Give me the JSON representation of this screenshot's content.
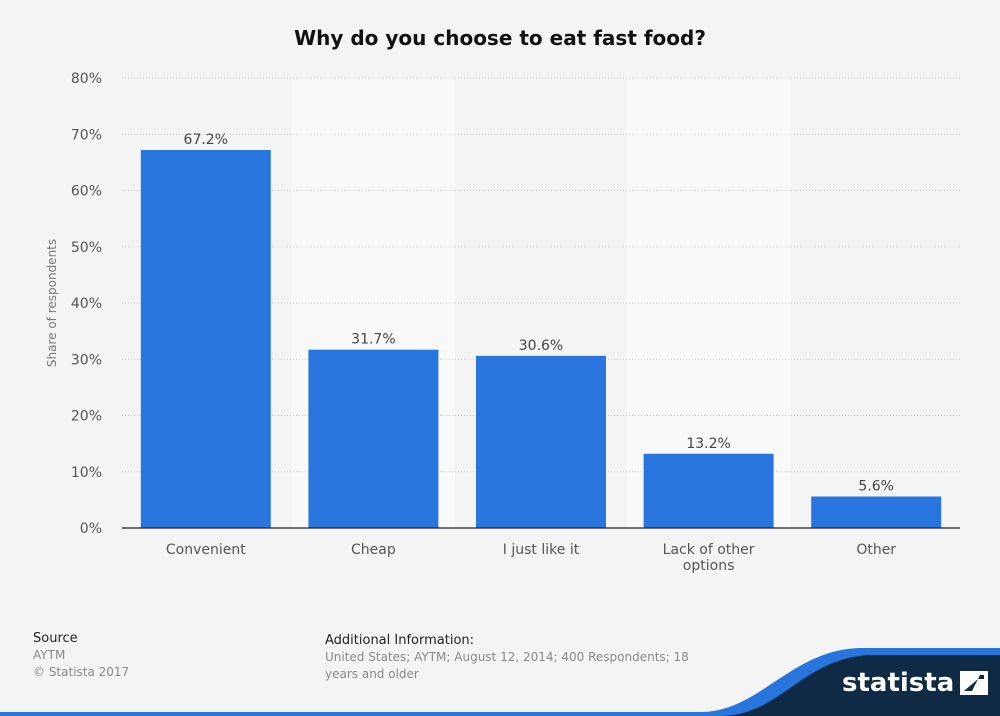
{
  "chart_data": {
    "type": "bar",
    "title": "Why do you choose to eat fast food?",
    "ylabel": "Share of respondents",
    "xlabel": "",
    "categories": [
      "Convenient",
      "Cheap",
      "I just like it",
      "Lack of other options",
      "Other"
    ],
    "category_lines": [
      [
        "Convenient"
      ],
      [
        "Cheap"
      ],
      [
        "I just like it"
      ],
      [
        "Lack of other",
        "options"
      ],
      [
        "Other"
      ]
    ],
    "values": [
      67.2,
      31.7,
      30.6,
      13.2,
      5.6
    ],
    "value_labels": [
      "67.2%",
      "31.7%",
      "30.6%",
      "13.2%",
      "5.6%"
    ],
    "ylim": [
      0,
      80
    ],
    "yticks": [
      0,
      10,
      20,
      30,
      40,
      50,
      60,
      70,
      80
    ],
    "ytick_labels": [
      "0%",
      "10%",
      "20%",
      "30%",
      "40%",
      "50%",
      "60%",
      "70%",
      "80%"
    ],
    "grid": true,
    "bar_color": "#2876dd"
  },
  "footer": {
    "source_heading": "Source",
    "source_name": "AYTM",
    "copyright": "© Statista 2017",
    "additional_heading": "Additional Information:",
    "additional_text": "United States; AYTM; August 12, 2014; 400 Respondents; 18 years and older"
  },
  "brand": {
    "name": "statista",
    "wave_color": "#2876dd",
    "dark_color": "#0f2a44"
  }
}
